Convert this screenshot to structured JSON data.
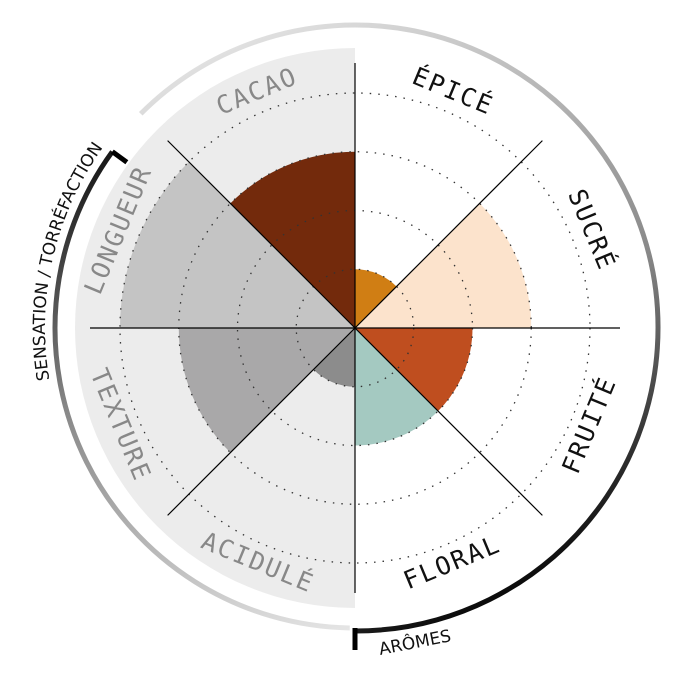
{
  "chart_data": {
    "type": "polar-area",
    "categories": [
      "ÉPICÉ",
      "SUCRÉ",
      "FRUITÉ",
      "FLORAL",
      "ACIDULÉ",
      "TEXTURE",
      "LONGUEUR",
      "CACAO"
    ],
    "values": [
      1,
      3,
      2,
      2,
      1,
      3,
      4,
      3
    ],
    "colors": [
      "#d07e14",
      "#fce3cc",
      "#bf4e1f",
      "#a4c9c1",
      "#8c8c8c",
      "#a9a8a9",
      "#c4c4c4",
      "#732a0c"
    ],
    "ylim": [
      0,
      4
    ],
    "yticks": [
      1,
      2,
      3,
      4
    ],
    "grid": true,
    "groups": [
      "SENSATION / TORRÉFACTION",
      "ARÔMES"
    ]
  }
}
